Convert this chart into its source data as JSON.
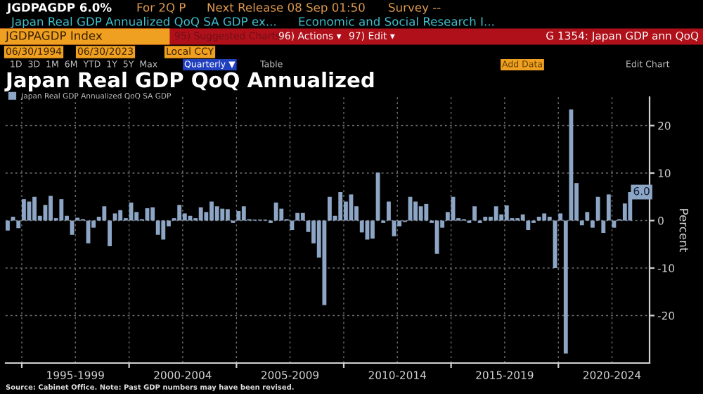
{
  "chart_data": {
    "type": "bar",
    "title": "Japan Real GDP QoQ Annualized",
    "ylabel": "Percent",
    "annotations": [
      "JGDPAGDP 6.0%",
      "For 2Q P",
      "Next Release 08 Sep 01:50",
      "Survey --",
      "Japan Real GDP Annualized QoQ SA GDP ex...",
      "Economic and Social Research I...",
      "JGDPAGDP Index",
      "95) Suggested Charts",
      "96) Actions ▾",
      "97) Edit ▾",
      "G 1354: Japan GDP ann QoQ",
      "06/30/1994",
      "06/30/2023",
      "Local CCY",
      "1D  3D  1M  6M  YTD  1Y  5Y  Max",
      "Quarterly ▼",
      "Table",
      "Add Data",
      "Edit Chart",
      "Source: Cabinet Office. Note: Past GDP numbers may have been revised."
    ],
    "x": [
      "1994-04",
      "1994-07",
      "1994-10",
      "1995-01",
      "1995-04",
      "1995-07",
      "1995-10",
      "1996-01",
      "1996-04",
      "1996-07",
      "1996-10",
      "1997-01",
      "1997-04",
      "1997-07",
      "1997-10",
      "1998-01",
      "1998-04",
      "1998-07",
      "1998-10",
      "1999-01",
      "1999-04",
      "1999-07",
      "1999-10",
      "2000-01",
      "2000-04",
      "2000-07",
      "2000-10",
      "2001-01",
      "2001-04",
      "2001-07",
      "2001-10",
      "2002-01",
      "2002-04",
      "2002-07",
      "2002-10",
      "2003-01",
      "2003-04",
      "2003-07",
      "2003-10",
      "2004-01",
      "2004-04",
      "2004-07",
      "2004-10",
      "2005-01",
      "2005-04",
      "2005-07",
      "2005-10",
      "2006-01",
      "2006-04",
      "2006-07",
      "2006-10",
      "2007-01",
      "2007-04",
      "2007-07",
      "2007-10",
      "2008-01",
      "2008-04",
      "2008-07",
      "2008-10",
      "2009-01",
      "2009-04",
      "2009-07",
      "2009-10",
      "2010-01",
      "2010-04",
      "2010-07",
      "2010-10",
      "2011-01",
      "2011-04",
      "2011-07",
      "2011-10",
      "2012-01",
      "2012-04",
      "2012-07",
      "2012-10",
      "2013-01",
      "2013-04",
      "2013-07",
      "2013-10",
      "2014-01",
      "2014-04",
      "2014-07",
      "2014-10",
      "2015-01",
      "2015-04",
      "2015-07",
      "2015-10",
      "2016-01",
      "2016-04",
      "2016-07",
      "2016-10",
      "2017-01",
      "2017-04",
      "2017-07",
      "2017-10",
      "2018-01",
      "2018-04",
      "2018-07",
      "2018-10",
      "2019-01",
      "2019-04",
      "2019-07",
      "2019-10",
      "2020-01",
      "2020-04",
      "2020-07",
      "2020-10",
      "2021-01",
      "2021-04",
      "2021-07",
      "2021-10",
      "2022-01",
      "2022-04",
      "2022-07",
      "2022-10",
      "2023-01",
      "2023-04"
    ],
    "series": [
      {
        "name": "Japan Real GDP Annualized QoQ SA GDP",
        "color": "#8ea6c6",
        "values": [
          -2.1,
          0.8,
          -1.6,
          4.5,
          4.0,
          5.0,
          1.0,
          3.3,
          5.2,
          0.5,
          4.5,
          1.0,
          -3.0,
          0.6,
          0.3,
          -4.8,
          -1.5,
          0.8,
          3.0,
          -5.4,
          1.5,
          2.2,
          0.5,
          3.8,
          1.8,
          0.3,
          2.6,
          2.8,
          -3.0,
          -4.0,
          -1.2,
          0.5,
          3.3,
          1.5,
          1.0,
          0.5,
          2.8,
          1.8,
          4.0,
          3.0,
          2.5,
          2.4,
          -0.5,
          2.0,
          3.0,
          0.3,
          0.2,
          0.2,
          0.2,
          -0.5,
          3.8,
          2.5,
          0.3,
          -2.0,
          1.6,
          1.6,
          -2.4,
          -4.8,
          -7.8,
          -17.8,
          5.0,
          1.0,
          6.0,
          4.0,
          5.5,
          3.0,
          -2.5,
          -4.0,
          -3.8,
          10.1,
          -0.5,
          4.0,
          -3.3,
          -1.2,
          -0.3,
          5.0,
          4.0,
          3.0,
          3.5,
          -0.5,
          -7.0,
          -1.5,
          1.8,
          5.0,
          0.5,
          0.3,
          -0.5,
          3.0,
          -0.5,
          0.8,
          0.8,
          3.0,
          1.3,
          3.2,
          0.5,
          0.5,
          1.3,
          -2.0,
          -0.5,
          0.8,
          1.5,
          0.8,
          -10.0,
          1.5,
          -28.0,
          23.4,
          7.9,
          -1.0,
          1.8,
          -1.5,
          5.0,
          -2.6,
          5.5,
          -1.5,
          0.3,
          3.6,
          6.0
        ],
        "value_labels": [
          null,
          null,
          null,
          null,
          null,
          null,
          null,
          null,
          null,
          null,
          null,
          null,
          null,
          null,
          null,
          null,
          null,
          null,
          null,
          null,
          null,
          null,
          null,
          null,
          null,
          null,
          null,
          null,
          null,
          null,
          null,
          null,
          null,
          null,
          null,
          null,
          null,
          null,
          null,
          null,
          null,
          null,
          null,
          null,
          null,
          null,
          null,
          null,
          null,
          null,
          null,
          null,
          null,
          null,
          null,
          null,
          null,
          null,
          null,
          null,
          null,
          null,
          null,
          null,
          null,
          null,
          null,
          null,
          null,
          null,
          null,
          null,
          null,
          null,
          null,
          null,
          null,
          null,
          null,
          null,
          null,
          null,
          null,
          null,
          null,
          null,
          null,
          null,
          null,
          null,
          null,
          null,
          null,
          null,
          null,
          null,
          null,
          null,
          null,
          null,
          null,
          null,
          null,
          null,
          null,
          null,
          null,
          null,
          null,
          null,
          null,
          null,
          null,
          null,
          null,
          null,
          "6.0"
        ]
      }
    ],
    "xlim": [
      "1994-04-01",
      "2024-04-01"
    ],
    "xticks": [
      {
        "value": "1995-01-01",
        "label": null
      },
      {
        "value": "1997-07-01",
        "label": "1995-1999"
      },
      {
        "value": "2000-01-01",
        "label": null
      },
      {
        "value": "2002-07-01",
        "label": "2000-2004"
      },
      {
        "value": "2005-01-01",
        "label": null
      },
      {
        "value": "2007-07-01",
        "label": "2005-2009"
      },
      {
        "value": "2010-01-01",
        "label": null
      },
      {
        "value": "2012-07-01",
        "label": "2010-2014"
      },
      {
        "value": "2015-01-01",
        "label": null
      },
      {
        "value": "2017-07-01",
        "label": "2015-2019"
      },
      {
        "value": "2020-01-01",
        "label": null
      },
      {
        "value": "2022-07-01",
        "label": "2020-2024"
      }
    ],
    "ylim": [
      -30,
      26
    ],
    "yticks": [
      -20,
      -10,
      0,
      10,
      20
    ],
    "grid": true,
    "legend": "top left"
  }
}
